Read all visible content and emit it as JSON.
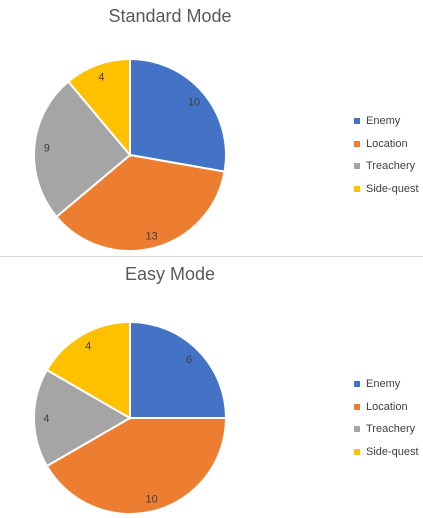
{
  "chart_data": [
    {
      "type": "pie",
      "title": "Standard Mode",
      "categories": [
        "Enemy",
        "Location",
        "Treachery",
        "Side-quest"
      ],
      "values": [
        10,
        13,
        9,
        4
      ],
      "colors": [
        "#4472C4",
        "#ED7D31",
        "#A5A5A5",
        "#FFC000"
      ],
      "data_labels": [
        "10",
        "13",
        "9",
        "4"
      ],
      "legend": "right"
    },
    {
      "type": "pie",
      "title": "Easy Mode",
      "categories": [
        "Enemy",
        "Location",
        "Treachery",
        "Side-quest"
      ],
      "values": [
        6,
        10,
        4,
        4
      ],
      "colors": [
        "#4472C4",
        "#ED7D31",
        "#A5A5A5",
        "#FFC000"
      ],
      "data_labels": [
        "6",
        "10",
        "4",
        "4"
      ],
      "legend": "right"
    }
  ]
}
